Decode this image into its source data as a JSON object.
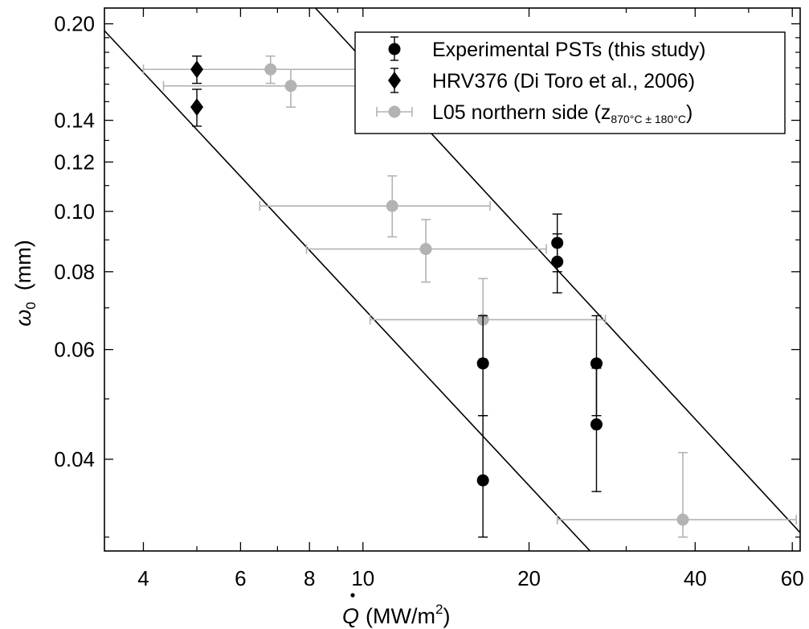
{
  "chart_data": {
    "type": "scatter",
    "xscale": "log",
    "yscale": "log",
    "xlim": [
      3.4,
      62
    ],
    "ylim": [
      0.0285,
      0.212
    ],
    "xlabel": {
      "var": "Q",
      "unit": "(MW/m",
      "sup": "2",
      "close": ")"
    },
    "ylabel": {
      "var": "ω",
      "sub": "0",
      "unit": "(mm)"
    },
    "xticks": [
      {
        "value": 4,
        "label": "4"
      },
      {
        "value": 6,
        "label": "6"
      },
      {
        "value": 8,
        "label": "8"
      },
      {
        "value": 10,
        "label": "10"
      },
      {
        "value": 20,
        "label": "20"
      },
      {
        "value": 40,
        "label": "40"
      },
      {
        "value": 60,
        "label": "60"
      }
    ],
    "yticks": [
      {
        "value": 0.04,
        "label": "0.04"
      },
      {
        "value": 0.06,
        "label": "0.06"
      },
      {
        "value": 0.08,
        "label": "0.08"
      },
      {
        "value": 0.1,
        "label": "0.10"
      },
      {
        "value": 0.12,
        "label": "0.12"
      },
      {
        "value": 0.14,
        "label": "0.14"
      },
      {
        "value": 0.2,
        "label": "0.20"
      }
    ],
    "grid": false,
    "legend_position": "top-right",
    "legend": [
      {
        "label": "Experimental PSTs (this study)",
        "marker": "circle",
        "color": "#000000"
      },
      {
        "label": "HRV376 (Di Toro et al., 2006)",
        "marker": "diamond",
        "color": "#000000"
      },
      {
        "label": "L05 northern side (z",
        "sub": "870°C ± 180°C",
        "close": ")",
        "marker": "circle",
        "color": "#b3b3b3"
      }
    ],
    "series": [
      {
        "name": "Experimental PSTs (this study)",
        "marker": "circle",
        "color": "#000000",
        "points": [
          {
            "x": 16.5,
            "y": 0.057,
            "ylo": 0.047,
            "yhi": 0.068
          },
          {
            "x": 16.5,
            "y": 0.037,
            "ylo": 0.03,
            "yhi": 0.047
          },
          {
            "x": 22.5,
            "y": 0.089,
            "ylo": 0.08,
            "yhi": 0.099
          },
          {
            "x": 22.5,
            "y": 0.083,
            "ylo": 0.074,
            "yhi": 0.092
          },
          {
            "x": 26.5,
            "y": 0.057,
            "ylo": 0.047,
            "yhi": 0.068
          },
          {
            "x": 26.5,
            "y": 0.0455,
            "ylo": 0.0355,
            "yhi": 0.056
          }
        ]
      },
      {
        "name": "HRV376 (Di Toro et al., 2006)",
        "marker": "diamond",
        "color": "#000000",
        "points": [
          {
            "x": 5.0,
            "y": 0.169,
            "ylo": 0.1605,
            "yhi": 0.1775
          },
          {
            "x": 5.0,
            "y": 0.147,
            "ylo": 0.137,
            "yhi": 0.157
          }
        ]
      },
      {
        "name": "L05 northern side",
        "marker": "circle",
        "color": "#b3b3b3",
        "points": [
          {
            "x": 6.8,
            "y": 0.169,
            "xlo": 4.0,
            "xhi": 11.6,
            "ylo": 0.1605,
            "yhi": 0.1775
          },
          {
            "x": 7.4,
            "y": 0.159,
            "xlo": 4.35,
            "xhi": 12.6,
            "ylo": 0.147,
            "yhi": 0.169
          },
          {
            "x": 11.3,
            "y": 0.102,
            "xlo": 6.5,
            "xhi": 17.0,
            "ylo": 0.091,
            "yhi": 0.114
          },
          {
            "x": 13.0,
            "y": 0.087,
            "xlo": 7.9,
            "xhi": 21.5,
            "ylo": 0.077,
            "yhi": 0.097
          },
          {
            "x": 16.5,
            "y": 0.067,
            "xlo": 10.3,
            "xhi": 27.5,
            "ylo": 0.058,
            "yhi": 0.078
          },
          {
            "x": 38.0,
            "y": 0.032,
            "xlo": 22.5,
            "xhi": 61.0,
            "ylo": 0.03,
            "yhi": 0.041
          }
        ]
      }
    ],
    "reference_lines": [
      {
        "x1": 3.4,
        "y1": 0.195,
        "x2": 25.8,
        "y2": 0.0285
      },
      {
        "x1": 8.2,
        "y1": 0.212,
        "x2": 62.0,
        "y2": 0.0305
      }
    ]
  }
}
